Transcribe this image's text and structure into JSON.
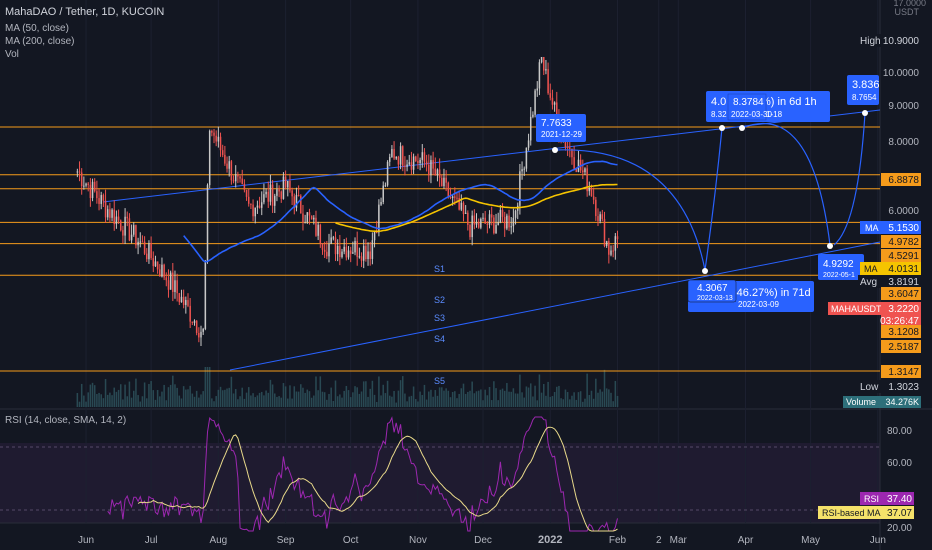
{
  "legend": {
    "symbol_line": "MahaDAO / Tether, 1D, KUCOIN",
    "ma50": "MA (50, close)",
    "ma200": "MA (200, close)",
    "vol": "Vol",
    "rsi": "RSI (14, close, SMA, 14, 2)"
  },
  "axis": {
    "currency": "USDT",
    "top_value": "17.0000",
    "price_ticks": [
      "10.0000",
      "9.0000",
      "8.0000",
      "6.0000"
    ],
    "time_ticks": [
      "Jun",
      "Jul",
      "Aug",
      "Sep",
      "Oct",
      "Nov",
      "Dec",
      "2022",
      "Feb",
      "2",
      "Mar",
      "Apr",
      "May",
      "Jun"
    ],
    "rsi_ticks": [
      "80.00",
      "60.00",
      "20.00"
    ]
  },
  "price_labels": {
    "high_name": "High",
    "high": "10.9000",
    "r1": "6.8878",
    "ma_name": "MA",
    "ma_a": "5.1530",
    "ma_b_val": "4.9782",
    "level_45": "4.5291",
    "ma_b_name": "MA",
    "ma_b": "4.0131",
    "avg_name": "Avg",
    "avg": "3.8191",
    "level_36": "3.6047",
    "symbol": "MAHAUSDT",
    "last": "3.2220",
    "countdown": "03:26:47",
    "level_31": "3.1208",
    "level_25": "2.5187",
    "level_13": "1.3147",
    "low_name": "Low",
    "low": "1.3023",
    "volume_name": "Volume",
    "volume": "34.276K"
  },
  "rsi_labels": {
    "rsi_name": "RSI",
    "rsi": "37.40",
    "ma_name": "RSI-based MA",
    "ma": "37.07"
  },
  "levels": {
    "s1": "S1",
    "s2": "S2",
    "s3": "S3",
    "s4": "S4",
    "s5": "S5"
  },
  "callouts": {
    "peak_top": "7.7633",
    "peak_bottom": "2021-12-29",
    "a_top": "4.3067",
    "a_bottom": "2022-03-13",
    "b_top": "-46.27%) in 71d",
    "b_bottom": "2022-03-09",
    "c_top": "4.0",
    "c_mid": "8.3784",
    "c_right": "%) in 6d 1h",
    "c_bot_left": "8.32",
    "c_bot_mid": "2022-03-30",
    "c_bot_right": "1-18",
    "d_top": "4.9292",
    "d_bottom": "2022-05-1",
    "e_top": "3.836",
    "e_bottom": "8.7654"
  },
  "colors": {
    "bg": "#131722",
    "up": "#c8c8c8",
    "down": "#ef5350",
    "ma50": "#2962ff",
    "ma200": "#f5c400",
    "channel": "#2962ff",
    "level": "#f59b1b",
    "rsi": "#9c27b0",
    "rsi_ma": "#e8d98a"
  },
  "chart_data": {
    "type": "candlestick",
    "x_range": [
      "2021-05-20",
      "2022-06-02"
    ],
    "y_log_labels": [
      "17.0000",
      "10.0000",
      "9.0000",
      "8.0000",
      "6.0000"
    ],
    "high": 10.9,
    "low": 1.3023,
    "last": 3.222,
    "ma50_last": 4.0131,
    "ma200_last": 5.153,
    "horizontal_levels": [
      6.8878,
      4.9782,
      4.5291,
      3.6047,
      3.1208,
      2.5187,
      1.3147
    ],
    "volume_last": "34.276K",
    "rsi": {
      "period": 14,
      "ylim": [
        20,
        90
      ],
      "last": 37.4,
      "ma_last": 37.07
    },
    "series_anchor_prices": [
      [
        "2021-05-28",
        5.1
      ],
      [
        "2021-06-10",
        4.0
      ],
      [
        "2021-06-25",
        3.2
      ],
      [
        "2021-07-10",
        2.4
      ],
      [
        "2021-07-25",
        1.7
      ],
      [
        "2021-07-28",
        6.9
      ],
      [
        "2021-08-15",
        4.0
      ],
      [
        "2021-09-01",
        4.6
      ],
      [
        "2021-09-20",
        3.1
      ],
      [
        "2021-10-10",
        3.0
      ],
      [
        "2021-10-20",
        5.8
      ],
      [
        "2021-11-05",
        5.4
      ],
      [
        "2021-11-25",
        3.5
      ],
      [
        "2021-12-15",
        3.7
      ],
      [
        "2021-12-28",
        10.9
      ],
      [
        "2022-01-05",
        6.8
      ],
      [
        "2022-01-20",
        4.5
      ],
      [
        "2022-01-28",
        3.0
      ],
      [
        "2022-02-01",
        3.22
      ]
    ]
  }
}
